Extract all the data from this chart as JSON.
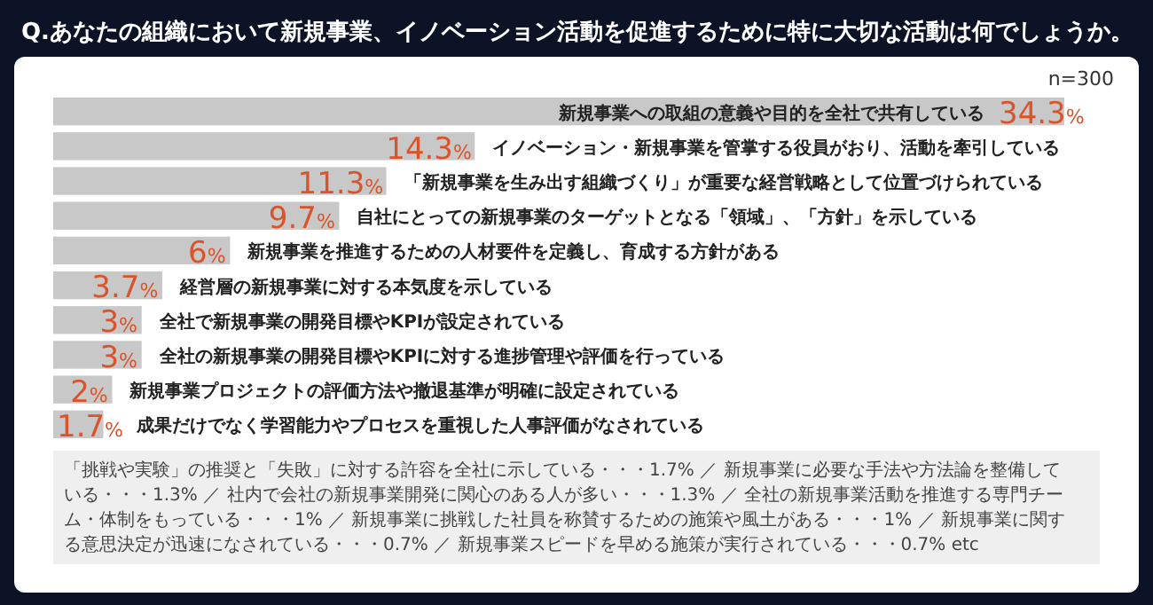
{
  "chart_data": {
    "type": "bar",
    "orientation": "horizontal",
    "title": "Q.あなたの組織において新規事業、イノベーション活動を促進するために特に大切な活動は何でしょうか。",
    "categories": [
      "新規事業への取組の意義や目的を全社で共有している",
      "イノベーション・新規事業を管掌する役員がおり、活動を牽引している",
      "「新規事業を生み出す組織づくり」が重要な経営戦略として位置づけられている",
      "自社にとっての新規事業のターゲットとなる「領域」、「方針」を示している",
      "新規事業を推進するための人材要件を定義し、育成する方針がある",
      "経営層の新規事業に対する本気度を示している",
      "全社で新規事業の開発目標やKPIが設定されている",
      "全社の新規事業の開発目標やKPIに対する進捗管理や評価を行っている",
      "新規事業プロジェクトの評価方法や撤退基準が明確に設定されている",
      "成果だけでなく学習能力やプロセスを重視した人事評価がなされている"
    ],
    "values": [
      34.3,
      14.3,
      11.3,
      9.7,
      6,
      3.7,
      3,
      3,
      2,
      1.7
    ],
    "value_labels": [
      "34.3%",
      "14.3%",
      "11.3%",
      "9.7%",
      "6%",
      "3.7%",
      "3%",
      "3%",
      "2%",
      "1.7%"
    ],
    "color": "#c8c8c8",
    "annotations": [
      "n=300",
      "「挑戦や実験」の推奨と「失敗」に対する許容を全社に示している・・・1.7% ／ 新規事業に必要な手法や方法論を整備している・・・1.3% ／ 社内で会社の新規事業開発に関心のある人が多い・・・1.3% ／ 全社の新規事業活動を推進する専門チーム・体制をもっている・・・1% ／ 新規事業に挑戦した社員を称賛するための施策や風土がある・・・1% ／ 新規事業に関する意思決定が迅速になされている・・・0.7% ／ 新規事業スピードを早める施策が実行されている・・・0.7% etc"
    ]
  }
}
